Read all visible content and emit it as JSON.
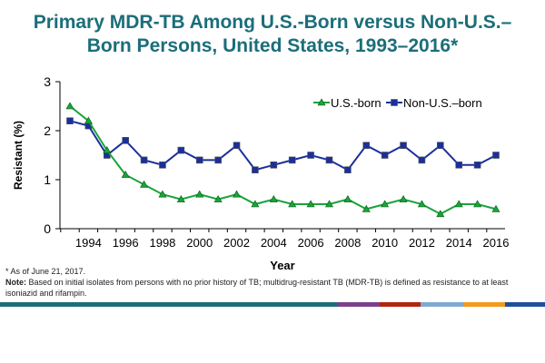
{
  "title_line1": "Primary MDR-TB Among U.S.-Born versus Non-U.S.–",
  "title_line2": "Born Persons, United States, 1993–2016*",
  "footnote": "*  As of June 21, 2017.",
  "note_label": "Note:",
  "note_text": " Based on initial isolates from persons with no prior history of TB; multidrug-resistant TB (MDR-TB) is defined as resistance to at least isoniazid and rifampin.",
  "colors": {
    "title": "#1b6e7a",
    "us_born": "#1aa33a",
    "non_us_born": "#1a2f9c",
    "band": [
      "#1b6e7a",
      "#7b3f8c",
      "#b2250f",
      "#7fa9d3",
      "#f29a1c",
      "#1f4f9c"
    ]
  },
  "chart_data": {
    "type": "line",
    "title": "Primary MDR-TB Among U.S.-Born versus Non-U.S.–Born Persons, United States, 1993–2016*",
    "xlabel": "Year",
    "ylabel": "Resistant (%)",
    "ylim": [
      0,
      3
    ],
    "xlim": [
      1993,
      2016
    ],
    "yticks": [
      "0",
      "1",
      "2",
      "3"
    ],
    "xticks": [
      "1994",
      "1996",
      "1998",
      "2000",
      "2002",
      "2004",
      "2006",
      "2008",
      "2010",
      "2012",
      "2014",
      "2016"
    ],
    "legend_position": "top-right",
    "x": [
      1993,
      1994,
      1995,
      1996,
      1997,
      1998,
      1999,
      2000,
      2001,
      2002,
      2003,
      2004,
      2005,
      2006,
      2007,
      2008,
      2009,
      2010,
      2011,
      2012,
      2013,
      2014,
      2015,
      2016
    ],
    "series": [
      {
        "name": "U.S.-born",
        "marker": "triangle",
        "values": [
          2.5,
          2.2,
          1.6,
          1.1,
          0.9,
          0.7,
          0.6,
          0.7,
          0.6,
          0.7,
          0.5,
          0.6,
          0.5,
          0.5,
          0.5,
          0.6,
          0.4,
          0.5,
          0.6,
          0.5,
          0.3,
          0.5,
          0.5,
          0.4
        ]
      },
      {
        "name": "Non-U.S.–born",
        "marker": "square",
        "values": [
          2.2,
          2.1,
          1.5,
          1.8,
          1.4,
          1.3,
          1.6,
          1.4,
          1.4,
          1.7,
          1.2,
          1.3,
          1.4,
          1.5,
          1.4,
          1.2,
          1.7,
          1.5,
          1.7,
          1.4,
          1.7,
          1.3,
          1.3,
          1.5
        ]
      }
    ]
  }
}
